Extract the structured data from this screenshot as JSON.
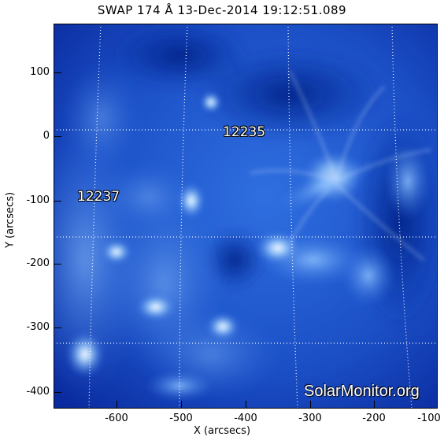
{
  "title": "SWAP 174 Å 13-Dec-2014 19:12:51.089",
  "xlabel": "X (arcsecs)",
  "ylabel": "Y (arcsecs)",
  "x_ticks": [
    "-600",
    "-500",
    "-400",
    "-300",
    "-200",
    "-100"
  ],
  "y_ticks": [
    "100",
    "0",
    "-100",
    "-200",
    "-300",
    "-400"
  ],
  "active_regions": [
    "12235",
    "12237"
  ],
  "watermark": "SolarMonitor.org",
  "colors": {
    "deep": "#0a2a9e",
    "mid": "#2f6fe0",
    "bright": "#a8d6ff",
    "grid": "#ffffff"
  }
}
